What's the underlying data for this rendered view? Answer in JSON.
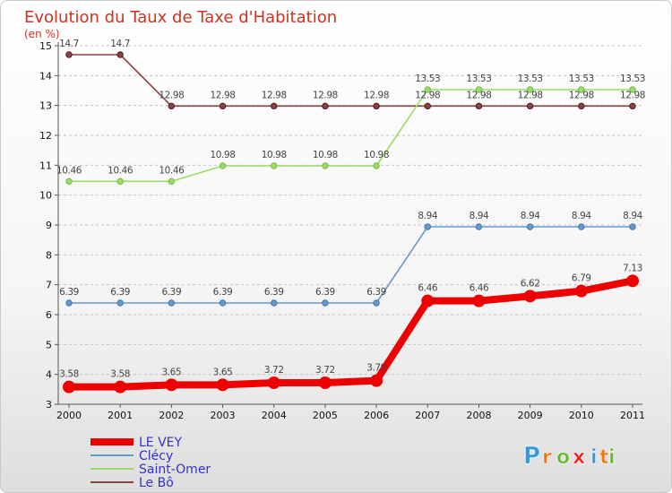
{
  "chart_data": {
    "type": "line",
    "title": "Evolution du Taux de Taxe d'Habitation",
    "subtitle": "(en %)",
    "x": [
      "2000",
      "2001",
      "2002",
      "2003",
      "2004",
      "2005",
      "2006",
      "2007",
      "2008",
      "2009",
      "2010",
      "2011"
    ],
    "yticks": [
      3,
      4,
      5,
      6,
      7,
      8,
      9,
      10,
      11,
      12,
      13,
      14,
      15
    ],
    "ylim": [
      3,
      15
    ],
    "grid": "horizontal dashed",
    "legend": "bottom-left",
    "series": [
      {
        "name": "LE VEY",
        "color": "#ee0000",
        "values": [
          3.58,
          3.58,
          3.65,
          3.65,
          3.72,
          3.72,
          3.79,
          6.46,
          6.46,
          6.62,
          6.79,
          7.13
        ],
        "labels": [
          "3.58",
          "3.58",
          "3.65",
          "3.65",
          "3.72",
          "3.72",
          "3.79",
          "6.46",
          "6.46",
          "6.62",
          "6.79",
          "7.13"
        ]
      },
      {
        "name": "Clécy",
        "color": "#6699cc",
        "values": [
          6.39,
          6.39,
          6.39,
          6.39,
          6.39,
          6.39,
          6.39,
          8.94,
          8.94,
          8.94,
          8.94,
          8.94
        ],
        "labels": [
          "6.39",
          "6.39",
          "6.39",
          "6.39",
          "6.39",
          "6.39",
          "6.39",
          "8.94",
          "8.94",
          "8.94",
          "8.94",
          "8.94"
        ]
      },
      {
        "name": "Saint-Omer",
        "color": "#99dd66",
        "values": [
          10.46,
          10.46,
          10.46,
          10.98,
          10.98,
          10.98,
          10.98,
          13.53,
          13.53,
          13.53,
          13.53,
          13.53
        ],
        "labels": [
          "10.46",
          "10.46",
          "10.46",
          "10.98",
          "10.98",
          "10.98",
          "10.98",
          "13.53",
          "13.53",
          "13.53",
          "13.53",
          "13.53"
        ]
      },
      {
        "name": "Le Bô",
        "color": "#884444",
        "values": [
          14.7,
          14.7,
          12.98,
          12.98,
          12.98,
          12.98,
          12.98,
          12.98,
          12.98,
          12.98,
          12.98,
          12.98
        ],
        "labels": [
          "14.7",
          "14.7",
          "12.98",
          "12.98",
          "12.98",
          "12.98",
          "12.98",
          "12.98",
          "12.98",
          "12.98",
          "12.98",
          "12.98"
        ]
      }
    ]
  },
  "brand": {
    "letters": [
      "P",
      "r",
      "o",
      "x",
      "i",
      "t",
      "i"
    ],
    "colors": [
      "#3399dd",
      "#ee7711",
      "#66bb33",
      "#ee2222",
      "#3399dd",
      "#ee7711",
      "#66bb33"
    ]
  }
}
